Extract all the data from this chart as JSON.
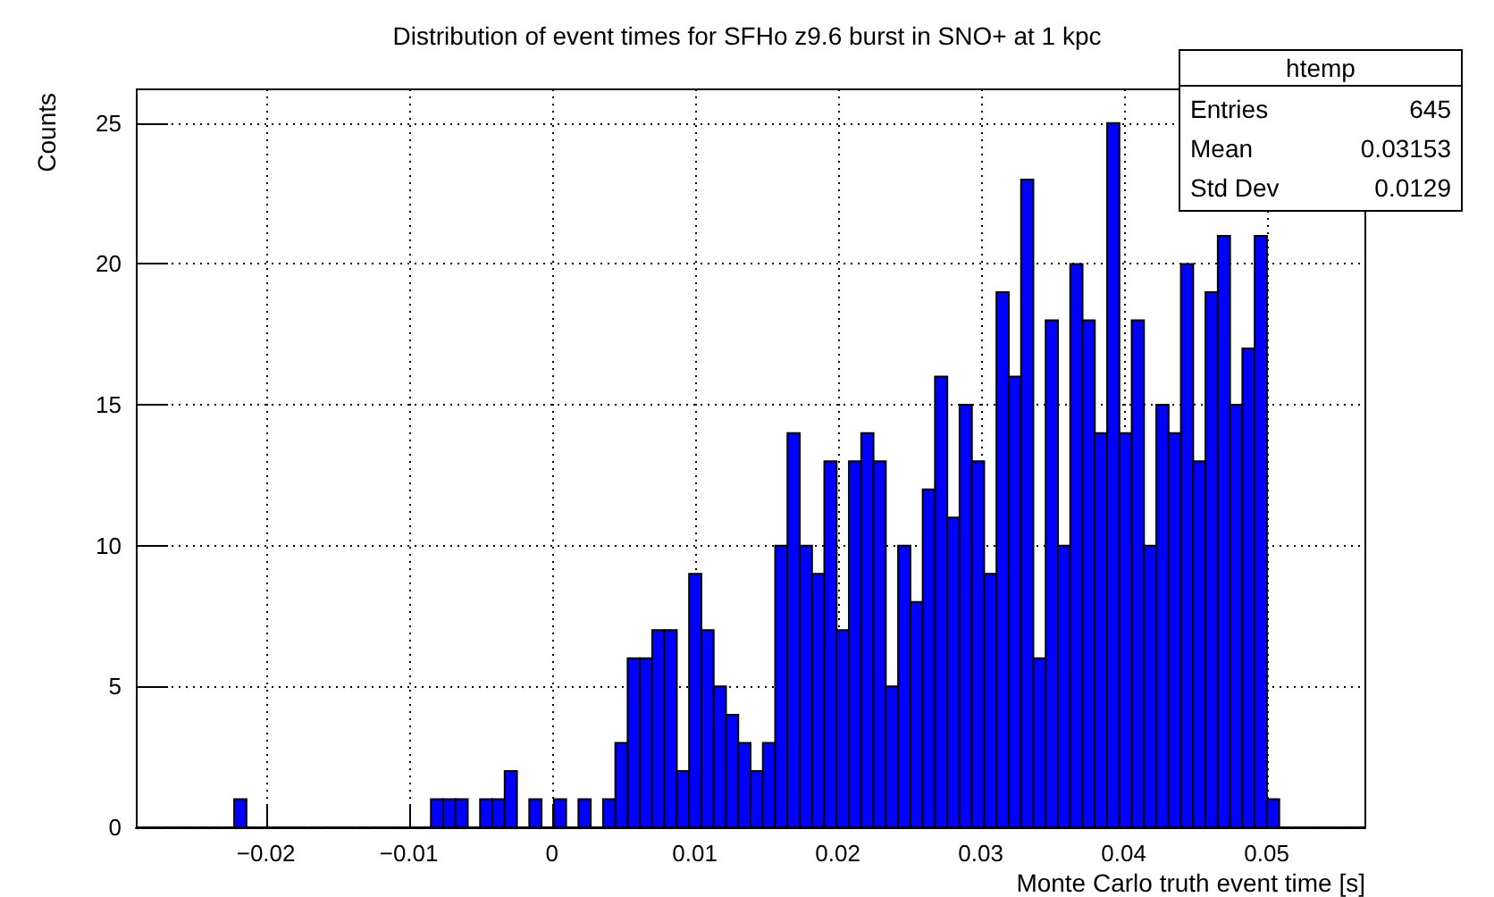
{
  "chart_data": {
    "type": "histogram",
    "title": "Distribution of event times for SFHo z9.6 burst in SNO+ at 1 kpc",
    "xlabel": "Monte Carlo truth event time [s]",
    "ylabel": "Counts",
    "annotations": [
      "htemp",
      "Entries",
      "645",
      "Mean",
      "0.03153",
      "Std Dev",
      "0.0129"
    ],
    "bins": [
      -0.0291,
      -0.02824,
      -0.02738,
      -0.02652,
      -0.02566,
      -0.0248,
      -0.02394,
      -0.02308,
      -0.02222,
      -0.02136,
      -0.0205,
      -0.01964,
      -0.01878,
      -0.01792,
      -0.01706,
      -0.0162,
      -0.01534,
      -0.01448,
      -0.01362,
      -0.01276,
      -0.0119,
      -0.01104,
      -0.01018,
      -0.00932,
      -0.00846,
      -0.0076,
      -0.00674,
      -0.00588,
      -0.00502,
      -0.00416,
      -0.0033,
      -0.00244,
      -0.00158,
      -0.00072,
      0.00014,
      0.001,
      0.00186,
      0.00272,
      0.00358,
      0.00444,
      0.0053,
      0.00616,
      0.00702,
      0.00788,
      0.00874,
      0.0096,
      0.01046,
      0.01132,
      0.01218,
      0.01304,
      0.0139,
      0.01476,
      0.01562,
      0.01648,
      0.01734,
      0.0182,
      0.01906,
      0.01992,
      0.02078,
      0.02164,
      0.0225,
      0.02336,
      0.02422,
      0.02508,
      0.02594,
      0.0268,
      0.02766,
      0.02852,
      0.02938,
      0.03024,
      0.0311,
      0.03196,
      0.03282,
      0.03368,
      0.03454,
      0.0354,
      0.03626,
      0.03712,
      0.03798,
      0.03884,
      0.0397,
      0.04056,
      0.04142,
      0.04228,
      0.04314,
      0.044,
      0.04486,
      0.04572,
      0.04658,
      0.04744,
      0.0483,
      0.04916,
      0.05002,
      0.05088,
      0.05174,
      0.0526,
      0.05346,
      0.05432,
      0.05518,
      0.05604,
      0.0569
    ],
    "values": [
      0,
      0,
      0,
      0,
      0,
      0,
      0,
      0,
      1,
      0,
      0,
      0,
      0,
      0,
      0,
      0,
      0,
      0,
      0,
      0,
      0,
      0,
      0,
      0,
      1,
      1,
      1,
      0,
      1,
      1,
      2,
      0,
      1,
      0,
      1,
      0,
      1,
      0,
      1,
      3,
      6,
      6,
      7,
      7,
      2,
      9,
      7,
      5,
      4,
      3,
      2,
      3,
      10,
      14,
      10,
      9,
      13,
      7,
      13,
      14,
      13,
      5,
      10,
      8,
      12,
      16,
      11,
      15,
      13,
      9,
      19,
      16,
      23,
      6,
      18,
      10,
      20,
      18,
      14,
      25,
      14,
      18,
      10,
      15,
      14,
      20,
      13,
      19,
      21,
      15,
      17,
      21,
      1,
      0,
      0,
      0,
      0,
      0,
      0,
      0
    ],
    "color": "#0000ff",
    "xlim": [
      -0.0291,
      0.0569
    ],
    "ylim": [
      0,
      26.2
    ],
    "xticks": [
      -0.02,
      -0.01,
      0,
      0.01,
      0.02,
      0.03,
      0.04,
      0.05
    ],
    "yticks": [
      0,
      5,
      10,
      15,
      20,
      25
    ],
    "grid": true
  }
}
